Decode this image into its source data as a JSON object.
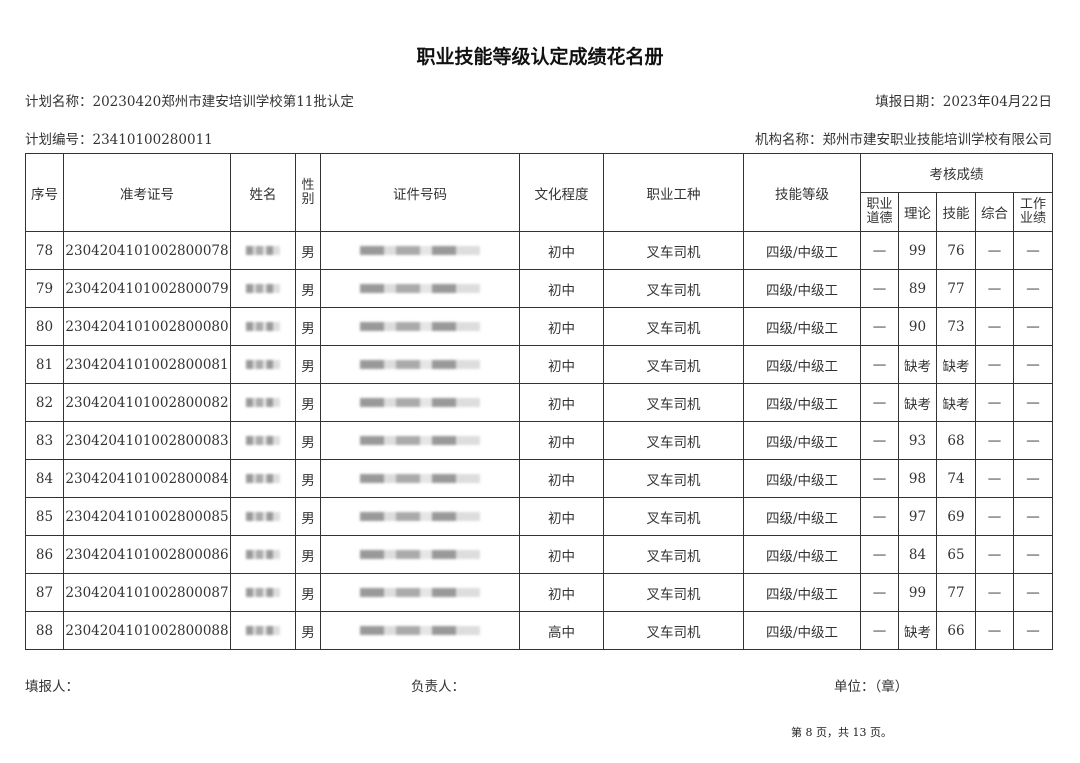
{
  "title": "职业技能等级认定成绩花名册",
  "plan_name": "计划名称：20230420郑州市建安培训学校第11批认定",
  "report_date": "填报日期：2023年04月22日",
  "plan_no": "计划编号：23410100280011",
  "org_name": "机构名称：郑州市建安职业技能培训学校有限公司",
  "headers": {
    "seq": "序号",
    "ticket": "准考证号",
    "name": "姓名",
    "gender": "性别",
    "id": "证件号码",
    "edu": "文化程度",
    "job": "职业工种",
    "level": "技能等级",
    "scores": "考核成绩",
    "ethics": "职业道德",
    "theory": "理论",
    "skill": "技能",
    "overall": "综合",
    "work": "工作业绩"
  },
  "rows": [
    {
      "seq": "78",
      "ticket": "2304204101002800078",
      "gender": "男",
      "edu": "初中",
      "job": "叉车司机",
      "level": "四级/中级工",
      "ethics": "—",
      "theory": "99",
      "skill": "76",
      "overall": "—",
      "work": "—"
    },
    {
      "seq": "79",
      "ticket": "2304204101002800079",
      "gender": "男",
      "edu": "初中",
      "job": "叉车司机",
      "level": "四级/中级工",
      "ethics": "—",
      "theory": "89",
      "skill": "77",
      "overall": "—",
      "work": "—"
    },
    {
      "seq": "80",
      "ticket": "2304204101002800080",
      "gender": "男",
      "edu": "初中",
      "job": "叉车司机",
      "level": "四级/中级工",
      "ethics": "—",
      "theory": "90",
      "skill": "73",
      "overall": "—",
      "work": "—"
    },
    {
      "seq": "81",
      "ticket": "2304204101002800081",
      "gender": "男",
      "edu": "初中",
      "job": "叉车司机",
      "level": "四级/中级工",
      "ethics": "—",
      "theory": "缺考",
      "skill": "缺考",
      "overall": "—",
      "work": "—"
    },
    {
      "seq": "82",
      "ticket": "2304204101002800082",
      "gender": "男",
      "edu": "初中",
      "job": "叉车司机",
      "level": "四级/中级工",
      "ethics": "—",
      "theory": "缺考",
      "skill": "缺考",
      "overall": "—",
      "work": "—"
    },
    {
      "seq": "83",
      "ticket": "2304204101002800083",
      "gender": "男",
      "edu": "初中",
      "job": "叉车司机",
      "level": "四级/中级工",
      "ethics": "—",
      "theory": "93",
      "skill": "68",
      "overall": "—",
      "work": "—"
    },
    {
      "seq": "84",
      "ticket": "2304204101002800084",
      "gender": "男",
      "edu": "初中",
      "job": "叉车司机",
      "level": "四级/中级工",
      "ethics": "—",
      "theory": "98",
      "skill": "74",
      "overall": "—",
      "work": "—"
    },
    {
      "seq": "85",
      "ticket": "2304204101002800085",
      "gender": "男",
      "edu": "初中",
      "job": "叉车司机",
      "level": "四级/中级工",
      "ethics": "—",
      "theory": "97",
      "skill": "69",
      "overall": "—",
      "work": "—"
    },
    {
      "seq": "86",
      "ticket": "2304204101002800086",
      "gender": "男",
      "edu": "初中",
      "job": "叉车司机",
      "level": "四级/中级工",
      "ethics": "—",
      "theory": "84",
      "skill": "65",
      "overall": "—",
      "work": "—"
    },
    {
      "seq": "87",
      "ticket": "2304204101002800087",
      "gender": "男",
      "edu": "初中",
      "job": "叉车司机",
      "level": "四级/中级工",
      "ethics": "—",
      "theory": "99",
      "skill": "77",
      "overall": "—",
      "work": "—"
    },
    {
      "seq": "88",
      "ticket": "2304204101002800088",
      "gender": "男",
      "edu": "高中",
      "job": "叉车司机",
      "level": "四级/中级工",
      "ethics": "—",
      "theory": "缺考",
      "skill": "66",
      "overall": "—",
      "work": "—"
    }
  ],
  "footer": {
    "reporter": "填报人：",
    "responsible": "负责人：",
    "unit": "单位：（章）",
    "page": "第 8 页，共 13 页。"
  }
}
